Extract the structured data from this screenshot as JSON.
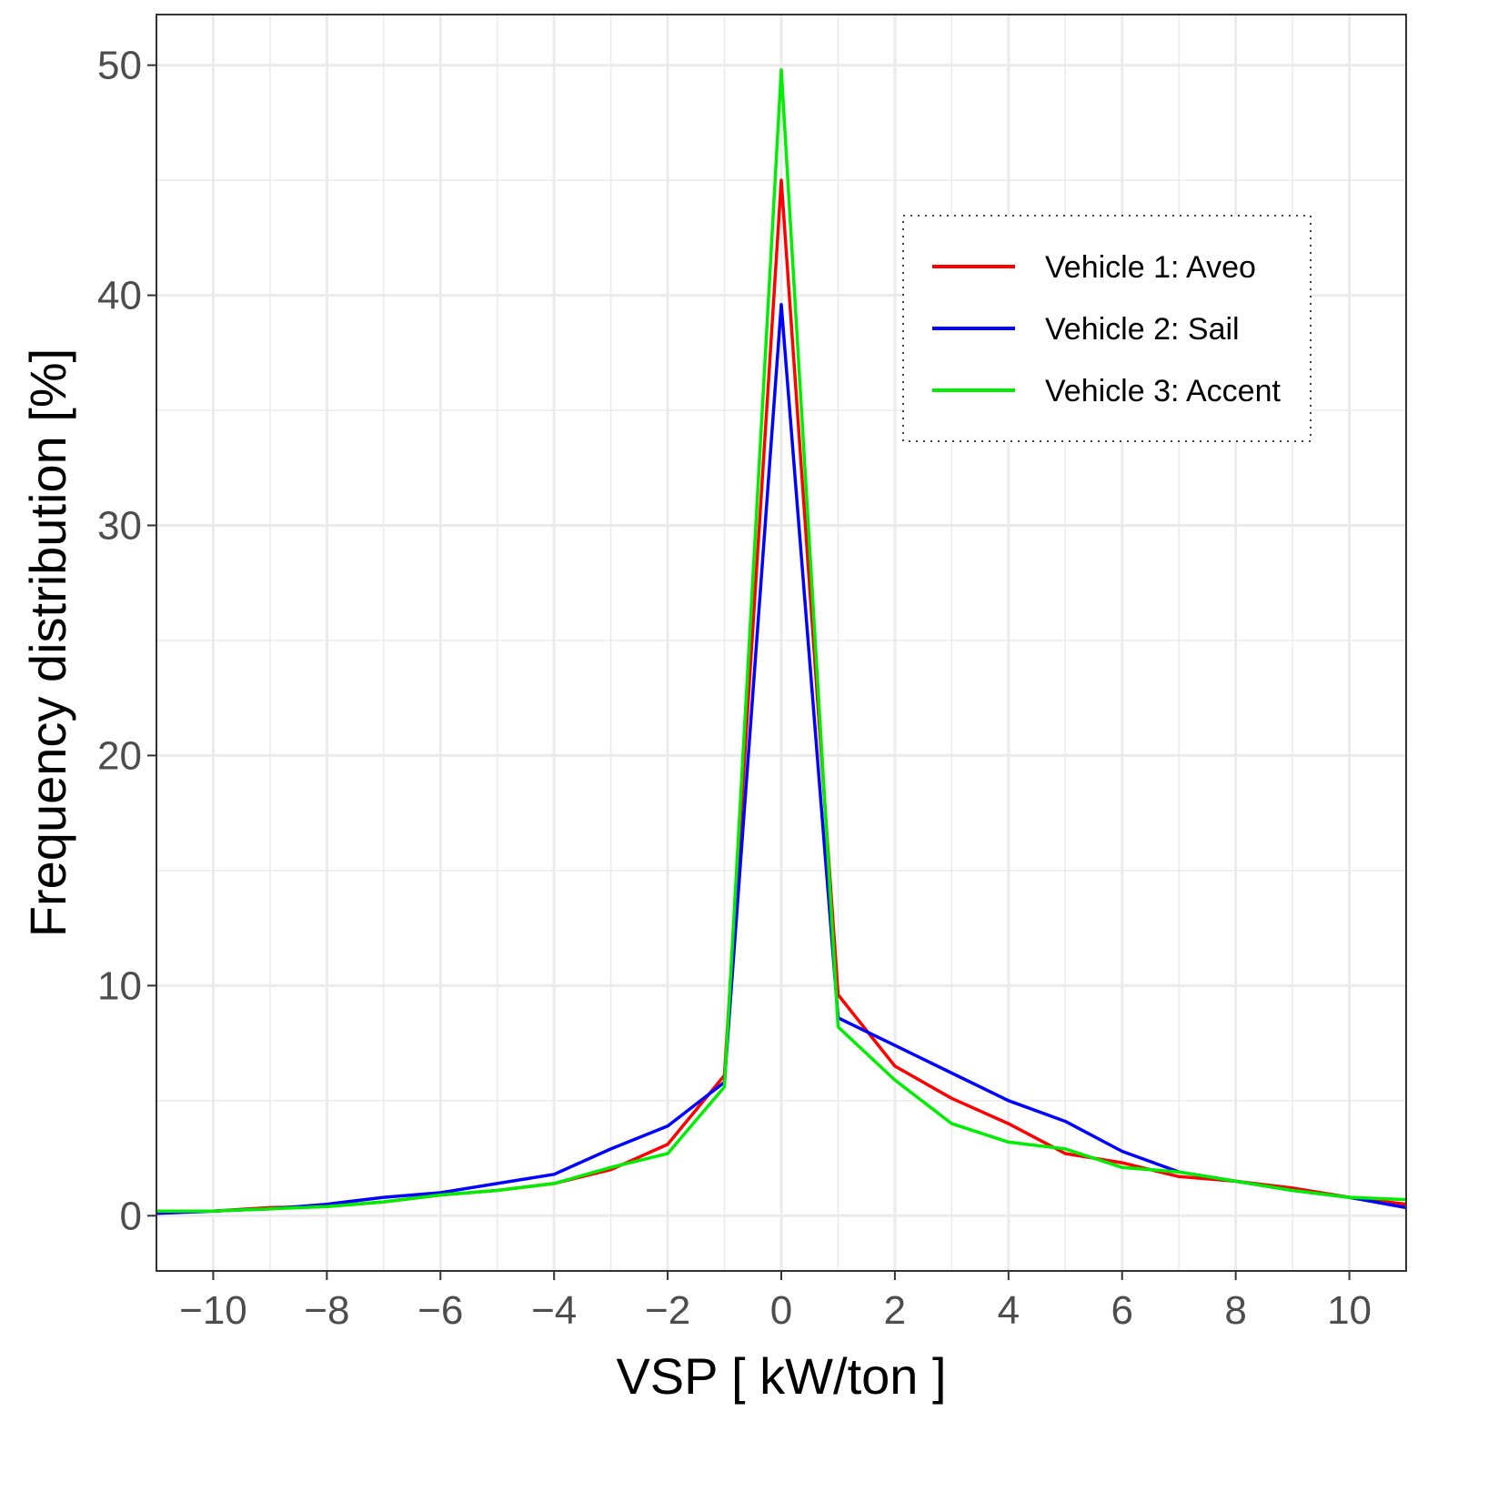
{
  "chart_data": {
    "type": "line",
    "title": "",
    "xlabel": "VSP [ kW/ton ]",
    "ylabel": "Frequency distribution [%]",
    "xlim": [
      -11,
      11
    ],
    "ylim": [
      -2.4,
      52.2
    ],
    "xticks": [
      -10,
      -8,
      -6,
      -4,
      -2,
      0,
      2,
      4,
      6,
      8,
      10
    ],
    "xtick_labels": [
      "−10",
      "−8",
      "−6",
      "−4",
      "−2",
      "0",
      "2",
      "4",
      "6",
      "8",
      "10"
    ],
    "yticks": [
      0,
      10,
      20,
      30,
      40,
      50
    ],
    "ytick_labels": [
      "0",
      "10",
      "20",
      "30",
      "40",
      "50"
    ],
    "grid": true,
    "legend_position": "top-right",
    "series": [
      {
        "name": "Vehicle 1: Aveo",
        "color": "#ff0000",
        "x": [
          -11,
          -10,
          -9,
          -8,
          -7,
          -6,
          -5,
          -4,
          -3,
          -2,
          -1,
          0,
          1,
          2,
          3,
          4,
          5,
          6,
          7,
          8,
          9,
          10,
          11
        ],
        "values": [
          0.2,
          0.2,
          0.35,
          0.4,
          0.6,
          0.9,
          1.1,
          1.4,
          2.0,
          3.1,
          6.1,
          45.0,
          9.6,
          6.5,
          5.1,
          4.0,
          2.7,
          2.3,
          1.7,
          1.5,
          1.2,
          0.8,
          0.5
        ]
      },
      {
        "name": "Vehicle 2: Sail",
        "color": "#0000ff",
        "x": [
          -11,
          -10,
          -9,
          -8,
          -7,
          -6,
          -5,
          -4,
          -3,
          -2,
          -1,
          0,
          1,
          2,
          3,
          4,
          5,
          6,
          7,
          8,
          9,
          10,
          11
        ],
        "values": [
          0.1,
          0.2,
          0.3,
          0.5,
          0.8,
          1.0,
          1.4,
          1.8,
          2.9,
          3.9,
          5.8,
          39.6,
          8.6,
          7.4,
          6.2,
          5.0,
          4.1,
          2.8,
          1.9,
          1.5,
          1.1,
          0.8,
          0.35
        ]
      },
      {
        "name": "Vehicle 3: Accent",
        "color": "#00ee00",
        "x": [
          -11,
          -10,
          -9,
          -8,
          -7,
          -6,
          -5,
          -4,
          -3,
          -2,
          -1,
          0,
          1,
          2,
          3,
          4,
          5,
          6,
          7,
          8,
          9,
          10,
          11
        ],
        "values": [
          0.2,
          0.2,
          0.3,
          0.4,
          0.6,
          0.9,
          1.1,
          1.4,
          2.1,
          2.7,
          5.6,
          49.8,
          8.2,
          5.9,
          4.0,
          3.2,
          2.9,
          2.1,
          1.9,
          1.5,
          1.1,
          0.8,
          0.7
        ]
      }
    ]
  }
}
